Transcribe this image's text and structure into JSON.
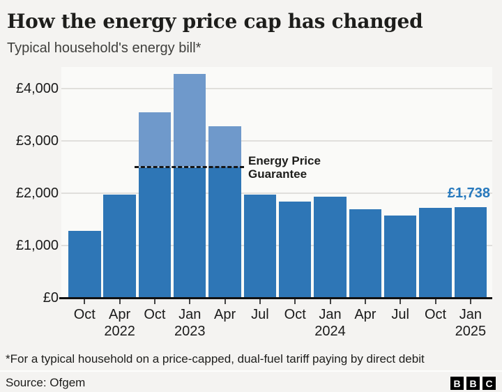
{
  "header": {
    "title": "How the energy price cap has changed",
    "subtitle": "Typical household's energy bill*"
  },
  "chart_data": {
    "type": "bar",
    "title": "How the energy price cap has changed",
    "subtitle": "Typical household's energy bill*",
    "categories": [
      "Oct 2021",
      "Apr 2022",
      "Oct 2022",
      "Jan 2023",
      "Apr 2023",
      "Jul 2023",
      "Oct 2023",
      "Jan 2024",
      "Apr 2024",
      "Jul 2024",
      "Oct 2024",
      "Jan 2025"
    ],
    "values": [
      1277,
      1971,
      3549,
      4279,
      3280,
      1976,
      1834,
      1928,
      1690,
      1568,
      1717,
      1738
    ],
    "x_tick_labels": [
      "Oct",
      "Apr",
      "Oct",
      "Jan",
      "Apr",
      "Jul",
      "Oct",
      "Jan",
      "Apr",
      "Jul",
      "Oct",
      "Jan"
    ],
    "x_tick_years": [
      "",
      "2022",
      "",
      "2023",
      "",
      "",
      "",
      "2024",
      "",
      "",
      "",
      "2025"
    ],
    "y_ticks": [
      {
        "label": "£4,000",
        "value": 4000
      },
      {
        "label": "£3,000",
        "value": 3000
      },
      {
        "label": "£2,000",
        "value": 2000
      },
      {
        "label": "£1,000",
        "value": 1000
      },
      {
        "label": "£0",
        "value": 0
      }
    ],
    "ylim": [
      0,
      4300
    ],
    "grid": true,
    "annotation": {
      "label_line1": "Energy Price",
      "label_line2": "Guarantee",
      "value": 2500
    },
    "last_value_label": "£1,738",
    "colors": {
      "bar": "#2e76b6",
      "bar_above_guarantee": "#6f99cb",
      "value_label": "#2779bd",
      "guarantee_line": "#161616"
    }
  },
  "footer": {
    "footnote": "*For a typical household on a price-capped, dual-fuel tariff paying by direct debit",
    "source": "Source: Ofgem",
    "logo_letters": [
      "B",
      "B",
      "C"
    ]
  }
}
